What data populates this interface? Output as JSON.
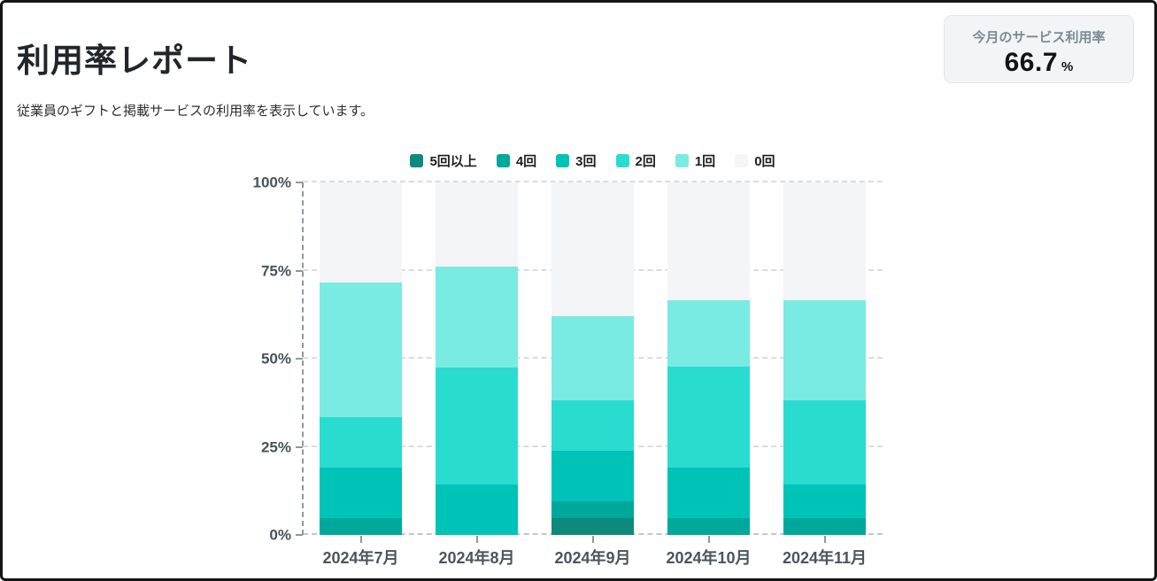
{
  "page": {
    "title": "利用率レポート",
    "subtitle": "従業員のギフトと掲載サービスの利用率を表示しています。"
  },
  "summary_card": {
    "label": "今月のサービス利用率",
    "value": "66.7",
    "unit": "%"
  },
  "chart_data": {
    "type": "bar",
    "stacked": true,
    "unit": "percent",
    "categories": [
      "2024年7月",
      "2024年8月",
      "2024年9月",
      "2024年10月",
      "2024年11月"
    ],
    "series": [
      {
        "name": "5回以上",
        "color": "#0e8a7d",
        "values": [
          0,
          0,
          4.8,
          0,
          0
        ]
      },
      {
        "name": "4回",
        "color": "#00a89c",
        "values": [
          4.8,
          0,
          4.8,
          4.8,
          4.8
        ]
      },
      {
        "name": "3回",
        "color": "#00c3b7",
        "values": [
          14.3,
          14.3,
          14.3,
          14.3,
          9.5
        ]
      },
      {
        "name": "2回",
        "color": "#2adcd0",
        "values": [
          14.3,
          33.3,
          14.3,
          28.6,
          23.8
        ]
      },
      {
        "name": "1回",
        "color": "#79ebe2",
        "values": [
          38.1,
          28.6,
          23.8,
          19.0,
          28.6
        ]
      },
      {
        "name": "0回",
        "color": "#f4f5f7",
        "values": [
          28.6,
          23.8,
          38.1,
          33.3,
          33.3
        ]
      }
    ],
    "stack_totals_excluding_zero": [
      71.4,
      76.2,
      61.9,
      66.7,
      66.7
    ],
    "y_ticks": [
      "0%",
      "25%",
      "50%",
      "75%",
      "100%"
    ],
    "ylim": [
      0,
      100
    ],
    "grid": "dashed horizontal lines every 25%, dashed y-axis line, dashed baseline",
    "legend_position": "top-center"
  }
}
